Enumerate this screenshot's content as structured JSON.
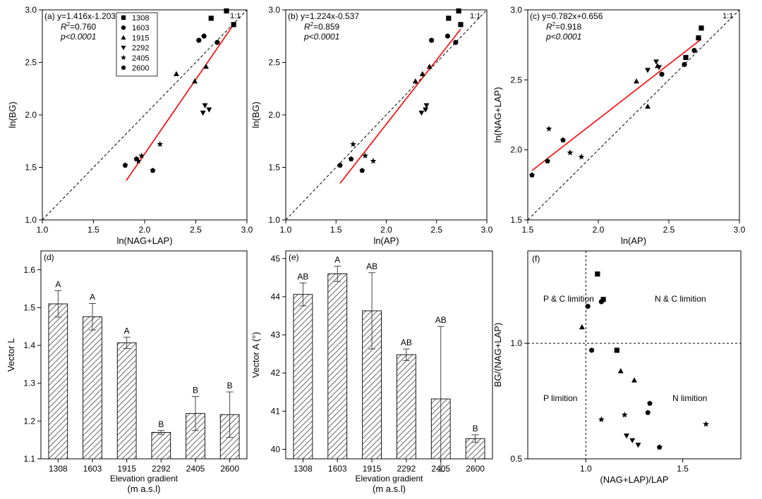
{
  "chart_data": [
    {
      "id": "a",
      "type": "scatter",
      "panel_label": "(a)",
      "equation": "y=1.416x-1.203",
      "r2_prefix": "R",
      "r2_sup": "2",
      "r2_value": "=0.760",
      "p_text": "p<0.0001",
      "ratio_label": "1:1",
      "xlabel": "ln(NAG+LAP)",
      "ylabel": "ln(BG)",
      "xlim": [
        1.0,
        3.0
      ],
      "ylim": [
        1.0,
        3.0
      ],
      "xticks": [
        "1.0",
        "1.5",
        "2.0",
        "2.5",
        "3.0"
      ],
      "yticks": [
        "1.0",
        "1.5",
        "2.0",
        "2.5",
        "3.0"
      ],
      "fit": {
        "slope": 1.416,
        "intercept": -1.203,
        "xrange": [
          1.82,
          2.87
        ]
      },
      "legend": [
        {
          "label": "1308",
          "marker": "square"
        },
        {
          "label": "1603",
          "marker": "circle"
        },
        {
          "label": "1915",
          "marker": "triangle"
        },
        {
          "label": "2292",
          "marker": "triangle-down"
        },
        {
          "label": "2405",
          "marker": "star"
        },
        {
          "label": "2600",
          "marker": "pentagon"
        }
      ],
      "series": [
        {
          "name": "1308",
          "marker": "square",
          "points": [
            [
              2.8,
              2.99
            ],
            [
              2.65,
              2.92
            ],
            [
              2.87,
              2.86
            ]
          ]
        },
        {
          "name": "1603",
          "marker": "circle",
          "points": [
            [
              2.53,
              2.71
            ],
            [
              2.58,
              2.75
            ],
            [
              2.71,
              2.69
            ]
          ]
        },
        {
          "name": "1915",
          "marker": "triangle",
          "points": [
            [
              2.31,
              2.39
            ],
            [
              2.6,
              2.46
            ],
            [
              2.49,
              2.32
            ]
          ]
        },
        {
          "name": "2292",
          "marker": "triangle-down",
          "points": [
            [
              2.59,
              2.09
            ],
            [
              2.63,
              2.05
            ],
            [
              2.57,
              2.02
            ]
          ]
        },
        {
          "name": "2405",
          "marker": "star",
          "points": [
            [
              2.15,
              1.72
            ],
            [
              1.97,
              1.61
            ],
            [
              1.94,
              1.56
            ]
          ]
        },
        {
          "name": "2600",
          "marker": "pentagon",
          "points": [
            [
              1.81,
              1.52
            ],
            [
              1.92,
              1.58
            ],
            [
              2.08,
              1.47
            ]
          ]
        }
      ]
    },
    {
      "id": "b",
      "type": "scatter",
      "panel_label": "(b)",
      "equation": "y=1.224x-0.537",
      "r2_prefix": "R",
      "r2_sup": "2",
      "r2_value": "=0.859",
      "p_text": "p<0.0001",
      "ratio_label": "1:1",
      "xlabel": "ln(AP)",
      "ylabel": "ln(BG)",
      "xlim": [
        1.0,
        3.0
      ],
      "ylim": [
        1.0,
        3.0
      ],
      "xticks": [
        "1.0",
        "1.5",
        "2.0",
        "2.5",
        "3.0"
      ],
      "yticks": [
        "1.0",
        "1.5",
        "2.0",
        "2.5",
        "3.0"
      ],
      "fit": {
        "slope": 1.224,
        "intercept": -0.537,
        "xrange": [
          1.54,
          2.74
        ]
      },
      "series": [
        {
          "name": "1308",
          "marker": "square",
          "points": [
            [
              2.72,
              2.99
            ],
            [
              2.62,
              2.92
            ],
            [
              2.74,
              2.86
            ]
          ]
        },
        {
          "name": "1603",
          "marker": "circle",
          "points": [
            [
              2.45,
              2.71
            ],
            [
              2.61,
              2.75
            ],
            [
              2.69,
              2.69
            ]
          ]
        },
        {
          "name": "1915",
          "marker": "triangle",
          "points": [
            [
              2.36,
              2.39
            ],
            [
              2.43,
              2.46
            ],
            [
              2.29,
              2.32
            ]
          ]
        },
        {
          "name": "2292",
          "marker": "triangle-down",
          "points": [
            [
              2.4,
              2.09
            ],
            [
              2.39,
              2.05
            ],
            [
              2.35,
              2.02
            ]
          ]
        },
        {
          "name": "2405",
          "marker": "star",
          "points": [
            [
              1.67,
              1.72
            ],
            [
              1.79,
              1.61
            ],
            [
              1.87,
              1.56
            ]
          ]
        },
        {
          "name": "2600",
          "marker": "pentagon",
          "points": [
            [
              1.54,
              1.52
            ],
            [
              1.65,
              1.58
            ],
            [
              1.76,
              1.47
            ]
          ]
        }
      ]
    },
    {
      "id": "c",
      "type": "scatter",
      "panel_label": "(c)",
      "equation": "y=0.782x+0.656",
      "r2_prefix": "R",
      "r2_sup": "2",
      "r2_value": "=0.918",
      "p_text": "p<0.0001",
      "ratio_label": "1:1",
      "xlabel": "ln(AP)",
      "ylabel": "ln(NAG+LAP)",
      "xlim": [
        1.5,
        3.0
      ],
      "ylim": [
        1.5,
        3.0
      ],
      "xticks": [
        "1.5",
        "2.0",
        "2.5",
        "3.0"
      ],
      "yticks": [
        "1.5",
        "2.0",
        "2.5",
        "3.0"
      ],
      "fit": {
        "slope": 0.782,
        "intercept": 0.656,
        "xrange": [
          1.53,
          2.73
        ]
      },
      "series": [
        {
          "name": "1308",
          "marker": "square",
          "points": [
            [
              2.73,
              2.87
            ],
            [
              2.62,
              2.66
            ],
            [
              2.71,
              2.8
            ]
          ]
        },
        {
          "name": "1603",
          "marker": "circle",
          "points": [
            [
              2.45,
              2.54
            ],
            [
              2.61,
              2.61
            ],
            [
              2.68,
              2.71
            ]
          ]
        },
        {
          "name": "1915",
          "marker": "triangle",
          "points": [
            [
              2.27,
              2.49
            ],
            [
              2.42,
              2.6
            ],
            [
              2.35,
              2.31
            ]
          ]
        },
        {
          "name": "2292",
          "marker": "triangle-down",
          "points": [
            [
              2.41,
              2.63
            ],
            [
              2.35,
              2.57
            ],
            [
              2.43,
              2.59
            ]
          ]
        },
        {
          "name": "2405",
          "marker": "star",
          "points": [
            [
              1.65,
              2.15
            ],
            [
              1.8,
              1.98
            ],
            [
              1.88,
              1.95
            ]
          ]
        },
        {
          "name": "2600",
          "marker": "pentagon",
          "points": [
            [
              1.53,
              1.82
            ],
            [
              1.64,
              1.92
            ],
            [
              1.75,
              2.07
            ]
          ]
        }
      ]
    },
    {
      "id": "d",
      "type": "bar",
      "panel_label": "(d)",
      "xlabel": "Elevation gradient",
      "xlabel_unit": "(m a.s.l)",
      "ylabel": "Vector L",
      "ylim": [
        1.1,
        1.65
      ],
      "yticks": [
        "1.1",
        "1.2",
        "1.3",
        "1.4",
        "1.5",
        "1.6"
      ],
      "categories": [
        "1308",
        "1603",
        "1915",
        "2292",
        "2405",
        "2600"
      ],
      "values": [
        1.51,
        1.476,
        1.407,
        1.17,
        1.22,
        1.217
      ],
      "errors": [
        0.035,
        0.035,
        0.015,
        0.005,
        0.045,
        0.06
      ],
      "letters": [
        "A",
        "A",
        "A",
        "B",
        "B",
        "B"
      ]
    },
    {
      "id": "e",
      "type": "bar",
      "panel_label": "(e)",
      "xlabel": "Elevation gradient",
      "xlabel_unit": "(m a.s.l)",
      "ylabel": "Vector A (°)",
      "ylim": [
        39.75,
        45.2
      ],
      "yticks": [
        "40",
        "41",
        "42",
        "43",
        "44",
        "45"
      ],
      "categories": [
        "1308",
        "1603",
        "1915",
        "2292",
        "2405",
        "2600"
      ],
      "values": [
        44.06,
        44.6,
        43.63,
        42.48,
        41.32,
        40.28
      ],
      "errors": [
        0.3,
        0.2,
        1.0,
        0.15,
        1.9,
        0.1
      ],
      "letters": [
        "AB",
        "A",
        "AB",
        "AB",
        "AB",
        "B"
      ]
    },
    {
      "id": "f",
      "type": "scatter",
      "panel_label": "(f)",
      "xlabel": "(NAG+LAP)/LAP",
      "ylabel": "BG/(NAG+LAP)",
      "xlim": [
        0.7,
        1.8
      ],
      "ylim": [
        0.5,
        1.4
      ],
      "xticks": [
        "1.0",
        "1.5"
      ],
      "yticks": [
        "0.5",
        "1.0"
      ],
      "reference_x": 1.0,
      "reference_y": 1.0,
      "quadrants": {
        "top_left": "P & C limition",
        "top_right": "N & C limition",
        "bottom_left": "P limition",
        "bottom_right": "N limition"
      },
      "series": [
        {
          "name": "1308",
          "marker": "square",
          "points": [
            [
              1.06,
              1.3
            ],
            [
              1.09,
              1.19
            ],
            [
              1.16,
              0.97
            ]
          ]
        },
        {
          "name": "1603",
          "marker": "circle",
          "points": [
            [
              1.01,
              1.16
            ],
            [
              1.08,
              1.18
            ],
            [
              1.03,
              0.97
            ]
          ]
        },
        {
          "name": "1915",
          "marker": "triangle",
          "points": [
            [
              0.98,
              1.07
            ],
            [
              1.18,
              0.88
            ],
            [
              1.25,
              0.84
            ]
          ]
        },
        {
          "name": "2292",
          "marker": "triangle-down",
          "points": [
            [
              1.21,
              0.6
            ],
            [
              1.24,
              0.58
            ],
            [
              1.27,
              0.56
            ]
          ]
        },
        {
          "name": "2405",
          "marker": "star",
          "points": [
            [
              1.08,
              0.67
            ],
            [
              1.2,
              0.69
            ],
            [
              1.62,
              0.65
            ]
          ]
        },
        {
          "name": "2600",
          "marker": "pentagon",
          "points": [
            [
              1.32,
              0.7
            ],
            [
              1.33,
              0.74
            ],
            [
              1.38,
              0.55
            ]
          ]
        }
      ]
    }
  ]
}
